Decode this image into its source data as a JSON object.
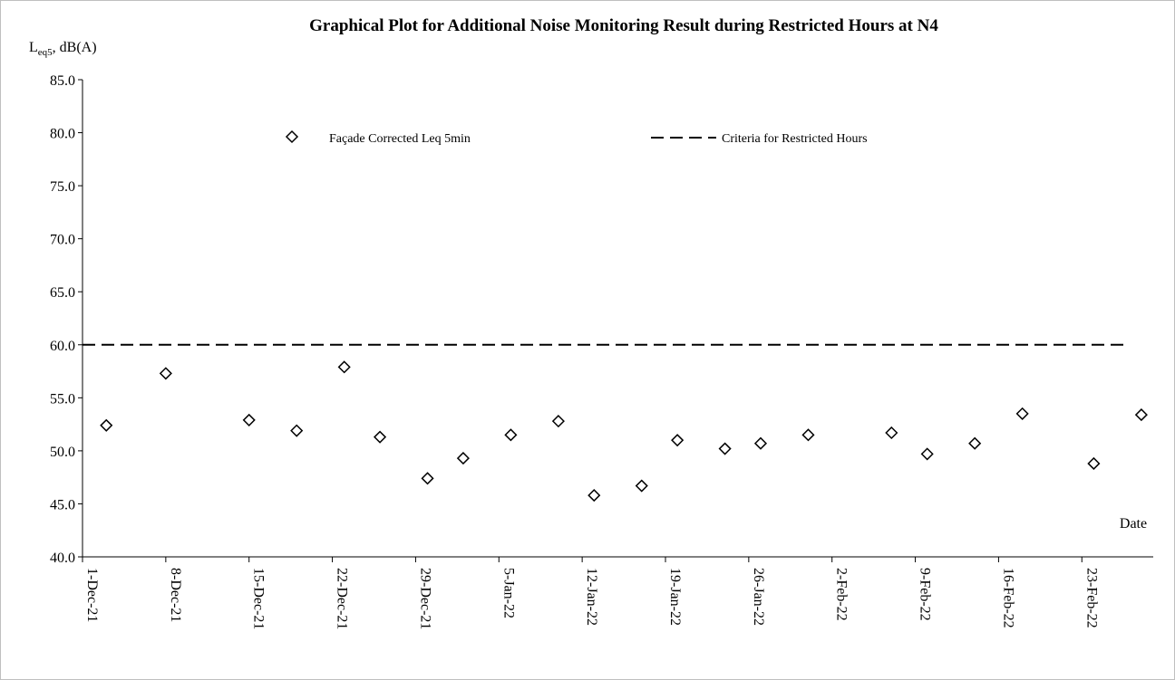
{
  "chart_data": {
    "type": "scatter",
    "title": "Graphical Plot for Additional Noise Monitoring Result during Restricted Hours at N4",
    "ylabel": {
      "main": "L",
      "sub": "eq5",
      "rest": ", dB(A)"
    },
    "xlabel": "Date",
    "ylim": [
      40,
      85
    ],
    "yticks": [
      "40.0",
      "45.0",
      "50.0",
      "55.0",
      "60.0",
      "65.0",
      "70.0",
      "75.0",
      "80.0",
      "85.0"
    ],
    "xlim": [
      "2021-12-01",
      "2022-03-01"
    ],
    "xticks": [
      {
        "date": "2021-12-01",
        "label": "1-Dec-21"
      },
      {
        "date": "2021-12-08",
        "label": "8-Dec-21"
      },
      {
        "date": "2021-12-15",
        "label": "15-Dec-21"
      },
      {
        "date": "2021-12-22",
        "label": "22-Dec-21"
      },
      {
        "date": "2021-12-29",
        "label": "29-Dec-21"
      },
      {
        "date": "2022-01-05",
        "label": "5-Jan-22"
      },
      {
        "date": "2022-01-12",
        "label": "12-Jan-22"
      },
      {
        "date": "2022-01-19",
        "label": "19-Jan-22"
      },
      {
        "date": "2022-01-26",
        "label": "26-Jan-22"
      },
      {
        "date": "2022-02-02",
        "label": "2-Feb-22"
      },
      {
        "date": "2022-02-09",
        "label": "9-Feb-22"
      },
      {
        "date": "2022-02-16",
        "label": "16-Feb-22"
      },
      {
        "date": "2022-02-23",
        "label": "23-Feb-22"
      }
    ],
    "series": [
      {
        "name": "Façade Corrected Leq 5min",
        "marker": "diamond",
        "points": [
          {
            "x": "2021-12-03",
            "y": 52.4
          },
          {
            "x": "2021-12-08",
            "y": 57.3
          },
          {
            "x": "2021-12-15",
            "y": 52.9
          },
          {
            "x": "2021-12-19",
            "y": 51.9
          },
          {
            "x": "2021-12-23",
            "y": 57.9
          },
          {
            "x": "2021-12-26",
            "y": 51.3
          },
          {
            "x": "2021-12-30",
            "y": 47.4
          },
          {
            "x": "2022-01-02",
            "y": 49.3
          },
          {
            "x": "2022-01-06",
            "y": 51.5
          },
          {
            "x": "2022-01-10",
            "y": 52.8
          },
          {
            "x": "2022-01-13",
            "y": 45.8
          },
          {
            "x": "2022-01-17",
            "y": 46.7
          },
          {
            "x": "2022-01-20",
            "y": 51.0
          },
          {
            "x": "2022-01-24",
            "y": 50.2
          },
          {
            "x": "2022-01-27",
            "y": 50.7
          },
          {
            "x": "2022-01-31",
            "y": 51.5
          },
          {
            "x": "2022-02-07",
            "y": 51.7
          },
          {
            "x": "2022-02-10",
            "y": 49.7
          },
          {
            "x": "2022-02-14",
            "y": 50.7
          },
          {
            "x": "2022-02-18",
            "y": 53.5
          },
          {
            "x": "2022-02-24",
            "y": 48.8
          },
          {
            "x": "2022-02-28",
            "y": 53.4
          }
        ]
      },
      {
        "name": "Criteria for Restricted Hours",
        "style": "dashed",
        "points": [
          {
            "x": "2021-12-01",
            "y": 60.0
          },
          {
            "x": "2022-03-01",
            "y": 60.0
          }
        ]
      }
    ],
    "legend_position": "top-center",
    "grid": false,
    "colors": {
      "marker": "#000000",
      "line": "#000000",
      "axis": "#000000"
    }
  }
}
